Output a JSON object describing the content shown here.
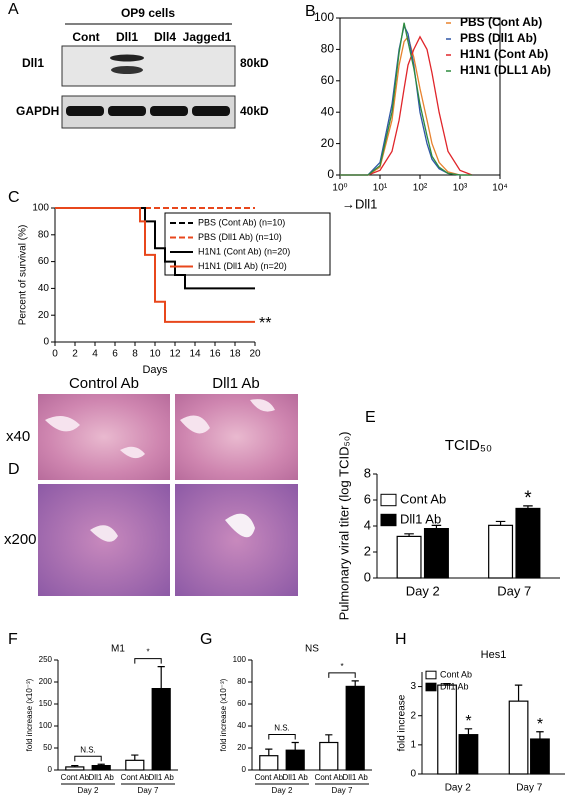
{
  "panel_labels": [
    "A",
    "B",
    "C",
    "D",
    "E",
    "F",
    "G",
    "H"
  ],
  "blot": {
    "header": "OP9 cells",
    "lanes": [
      "Cont",
      "Dll1",
      "Dll4",
      "Jagged1"
    ],
    "rows": [
      {
        "label": "Dll1",
        "size": "80kD"
      },
      {
        "label": "GAPDH",
        "size": "40kD"
      }
    ]
  },
  "histology": {
    "columns": [
      "Control Ab",
      "Dll1 Ab"
    ],
    "rows": [
      "x40",
      "x200"
    ]
  },
  "chart_data": [
    {
      "type": "line",
      "xscale": "log",
      "xlabel": "→Dll1",
      "legend": "upper right",
      "xlim": [
        1,
        10000
      ],
      "xticks": [
        {
          "value": 1,
          "label": "10⁰"
        },
        {
          "value": 10,
          "label": "10¹"
        },
        {
          "value": 100,
          "label": "10²"
        },
        {
          "value": 1000,
          "label": "10³"
        },
        {
          "value": 10000,
          "label": "10⁴"
        }
      ],
      "ylim": [
        0,
        100
      ],
      "yticks": [
        0,
        20,
        40,
        60,
        80,
        100
      ],
      "x": [
        1,
        5,
        10,
        20,
        30,
        40,
        50,
        70,
        100,
        150,
        200,
        300,
        500,
        1000,
        2000
      ],
      "series": [
        {
          "name": "PBS (Cont Ab)",
          "color": "#e8822e",
          "values": [
            0,
            0,
            5,
            35,
            70,
            85,
            88,
            75,
            55,
            35,
            20,
            8,
            2,
            0,
            0
          ]
        },
        {
          "name": "PBS (Dll1 Ab)",
          "color": "#2f56a6",
          "values": [
            0,
            0,
            8,
            45,
            80,
            95,
            90,
            70,
            40,
            20,
            10,
            4,
            1,
            0,
            0
          ]
        },
        {
          "name": "H1N1 (Cont Ab)",
          "color": "#e0262b",
          "values": [
            0,
            0,
            3,
            15,
            35,
            55,
            70,
            80,
            88,
            80,
            65,
            40,
            15,
            3,
            0
          ]
        },
        {
          "name": "H1N1 (DLL1 Ab)",
          "color": "#2e8b3e",
          "values": [
            0,
            0,
            6,
            40,
            78,
            97,
            85,
            68,
            45,
            25,
            12,
            5,
            1,
            0,
            0
          ]
        }
      ]
    },
    {
      "type": "step",
      "xlabel": "Days",
      "ylabel": "Percent of survival (%)",
      "legend": "upper right",
      "xlim": [
        0,
        20
      ],
      "xticks": [
        0,
        2,
        4,
        6,
        8,
        10,
        12,
        14,
        16,
        18,
        20
      ],
      "ylim": [
        0,
        100
      ],
      "yticks": [
        0,
        20,
        40,
        60,
        80,
        100
      ],
      "series": [
        {
          "name": "PBS (Cont Ab) (n=10)",
          "color": "#000000",
          "linestyle": "dashed",
          "x": [
            0,
            20
          ],
          "values": [
            100,
            100
          ]
        },
        {
          "name": "PBS (Dll1 Ab) (n=10)",
          "color": "#e8471c",
          "linestyle": "dashed",
          "x": [
            0,
            20
          ],
          "values": [
            100,
            100
          ]
        },
        {
          "name": "H1N1 (Cont Ab) (n=20)",
          "color": "#000000",
          "linestyle": "solid",
          "x": [
            0,
            9,
            10,
            11,
            12,
            13,
            20
          ],
          "values": [
            100,
            90,
            70,
            60,
            50,
            40,
            40
          ]
        },
        {
          "name": "H1N1 (Dll1 Ab) (n=20)",
          "color": "#e8471c",
          "linestyle": "solid",
          "x": [
            0,
            8.5,
            9,
            10,
            11,
            20
          ],
          "values": [
            100,
            90,
            65,
            30,
            15,
            15
          ],
          "significance": "**"
        }
      ]
    },
    {
      "type": "bar",
      "title": "TCID₅₀",
      "ylabel": "Pulmonary viral titer (log TCID₅₀)",
      "legend": "upper left",
      "categories": [
        "Day 2",
        "Day 7"
      ],
      "ylim": [
        0,
        8
      ],
      "yticks": [
        0,
        2,
        4,
        6,
        8
      ],
      "series": [
        {
          "name": "Cont Ab",
          "color": "#ffffff",
          "values": [
            3.2,
            4.05
          ],
          "errors": [
            0.2,
            0.3
          ],
          "significance": [
            null,
            null
          ]
        },
        {
          "name": "Dll1 Ab",
          "color": "#000000",
          "values": [
            3.8,
            5.35
          ],
          "errors": [
            0.25,
            0.2
          ],
          "significance": [
            null,
            "*"
          ]
        }
      ]
    },
    {
      "type": "bar",
      "title": "M1",
      "ylabel": "fold increase (x10⁻³)",
      "categories": [
        "Cont Ab",
        "Dll1 Ab",
        "Cont Ab",
        "Dll1 Ab"
      ],
      "groups": [
        "Day 2",
        "Day 7"
      ],
      "significance": [
        "N.S.",
        "*"
      ],
      "ylim": [
        0,
        250
      ],
      "yticks": [
        0,
        50,
        100,
        150,
        200,
        250
      ],
      "series": [
        {
          "colors": [
            "#ffffff",
            "#000000",
            "#ffffff",
            "#000000"
          ],
          "values": [
            7,
            10,
            22,
            185
          ],
          "errors": [
            3,
            3,
            12,
            50
          ]
        }
      ]
    },
    {
      "type": "bar",
      "title": "NS",
      "ylabel": "fold increase (x10⁻³)",
      "categories": [
        "Cont Ab",
        "Dll1 Ab",
        "Cont Ab",
        "Dll1 Ab"
      ],
      "groups": [
        "Day 2",
        "Day 7"
      ],
      "significance": [
        "N.S.",
        "*"
      ],
      "ylim": [
        0,
        100
      ],
      "yticks": [
        0,
        20,
        40,
        60,
        80,
        100
      ],
      "series": [
        {
          "colors": [
            "#ffffff",
            "#000000",
            "#ffffff",
            "#000000"
          ],
          "values": [
            13,
            18,
            25,
            76
          ],
          "errors": [
            6,
            7,
            7,
            5
          ]
        }
      ]
    },
    {
      "type": "bar",
      "title": "Hes1",
      "ylabel": "fold increase",
      "legend": "upper left",
      "categories": [
        "Day 2",
        "Day 7"
      ],
      "ylim": [
        0,
        3.5
      ],
      "yticks": [
        0,
        1,
        2,
        3
      ],
      "series": [
        {
          "name": "Cont Ab",
          "color": "#ffffff",
          "values": [
            3.05,
            2.5
          ],
          "errors": [
            0.05,
            0.55
          ],
          "significance": [
            null,
            null
          ]
        },
        {
          "name": "Dll1 Ab",
          "color": "#000000",
          "values": [
            1.35,
            1.2
          ],
          "errors": [
            0.2,
            0.25
          ],
          "significance": [
            "*",
            "*"
          ]
        }
      ]
    }
  ]
}
